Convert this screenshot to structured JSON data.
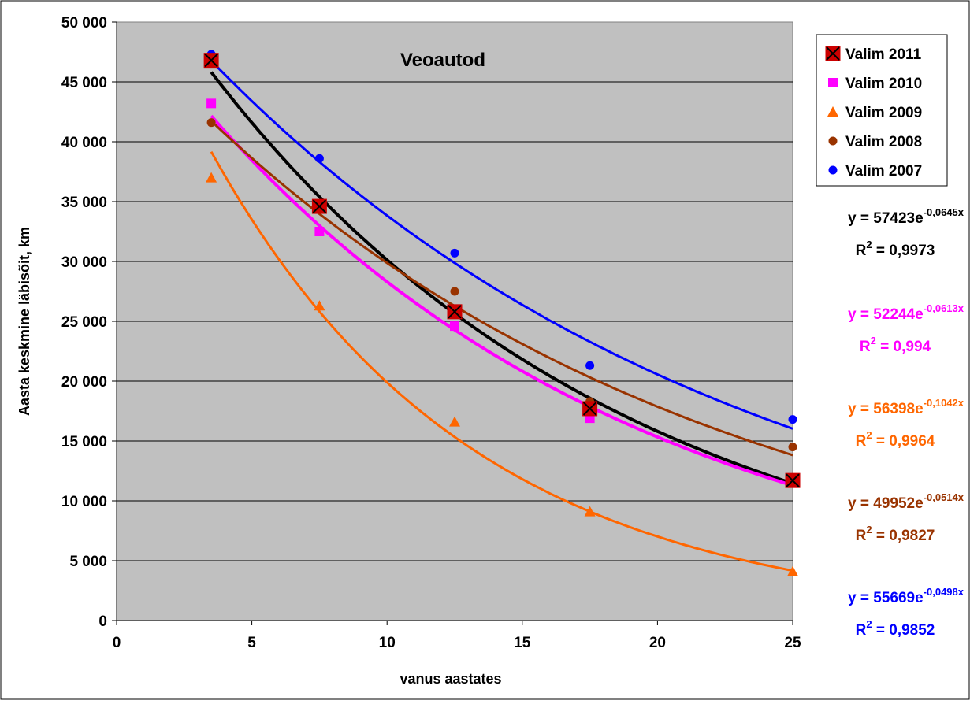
{
  "chart_data": {
    "type": "scatter",
    "title": "Veoautod",
    "xlabel": "vanus aastates",
    "ylabel": "Aasta keskmine läbisõit, km",
    "xlim": [
      0,
      25
    ],
    "ylim": [
      0,
      50000
    ],
    "x_ticks": [
      0,
      5,
      10,
      15,
      20,
      25
    ],
    "x_tick_labels": [
      "0",
      "5",
      "10",
      "15",
      "20",
      "25"
    ],
    "y_ticks": [
      0,
      5000,
      10000,
      15000,
      20000,
      25000,
      30000,
      35000,
      40000,
      45000,
      50000
    ],
    "y_tick_labels": [
      "0",
      "5 000",
      "10 000",
      "15 000",
      "20 000",
      "25 000",
      "30 000",
      "35 000",
      "40 000",
      "45 000",
      "50 000"
    ],
    "grid": "horizontal",
    "plot_background": "#c0c0c0",
    "legend_position": "right",
    "series": [
      {
        "name": "Valim 2011",
        "color": "#000000",
        "marker_color": "#cc0000",
        "marker": "square-x",
        "x": [
          3.5,
          7.5,
          12.5,
          17.5,
          25
        ],
        "y": [
          46800,
          34600,
          25800,
          17700,
          11700
        ],
        "trend": {
          "a": 57423,
          "b": -0.0645,
          "equation": "y = 57423e",
          "exponent": "-0,0645x",
          "r2_prefix": "R",
          "r2_sup": "2",
          "r2_value": " = 0,9973"
        }
      },
      {
        "name": "Valim 2010",
        "color": "#ff00ff",
        "marker_color": "#ff00ff",
        "marker": "square",
        "x": [
          3.5,
          7.5,
          12.5,
          17.5,
          25
        ],
        "y": [
          43200,
          32500,
          24600,
          16900,
          11600
        ],
        "trend": {
          "a": 52244,
          "b": -0.0613,
          "equation": "y = 52244e",
          "exponent": "-0,0613x",
          "r2_prefix": "R",
          "r2_sup": "2",
          "r2_value": " = 0,994"
        }
      },
      {
        "name": "Valim 2009",
        "color": "#ff6600",
        "marker_color": "#ff6600",
        "marker": "triangle",
        "x": [
          3.5,
          7.5,
          12.5,
          17.5,
          25
        ],
        "y": [
          37000,
          26300,
          16600,
          9100,
          4100
        ],
        "trend": {
          "a": 56398,
          "b": -0.1042,
          "equation": "y = 56398e",
          "exponent": "-0,1042x",
          "r2_prefix": "R",
          "r2_sup": "2",
          "r2_value": " = 0,9964"
        }
      },
      {
        "name": "Valim 2008",
        "color": "#993300",
        "marker_color": "#993300",
        "marker": "circle",
        "x": [
          3.5,
          7.5,
          12.5,
          17.5,
          25
        ],
        "y": [
          41600,
          34500,
          27500,
          18300,
          14500
        ],
        "trend": {
          "a": 49952,
          "b": -0.0514,
          "equation": "y = 49952e",
          "exponent": "-0,0514x",
          "r2_prefix": "R",
          "r2_sup": "2",
          "r2_value": " = 0,9827"
        }
      },
      {
        "name": "Valim 2007",
        "color": "#0000ff",
        "marker_color": "#0000ff",
        "marker": "circle",
        "x": [
          3.5,
          7.5,
          12.5,
          17.5,
          25
        ],
        "y": [
          47300,
          38600,
          30700,
          21300,
          16800
        ],
        "trend": {
          "a": 55669,
          "b": -0.0498,
          "equation": "y = 55669e",
          "exponent": "-0,0498x",
          "r2_prefix": "R",
          "r2_sup": "2",
          "r2_value": " = 0,9852"
        }
      }
    ]
  }
}
